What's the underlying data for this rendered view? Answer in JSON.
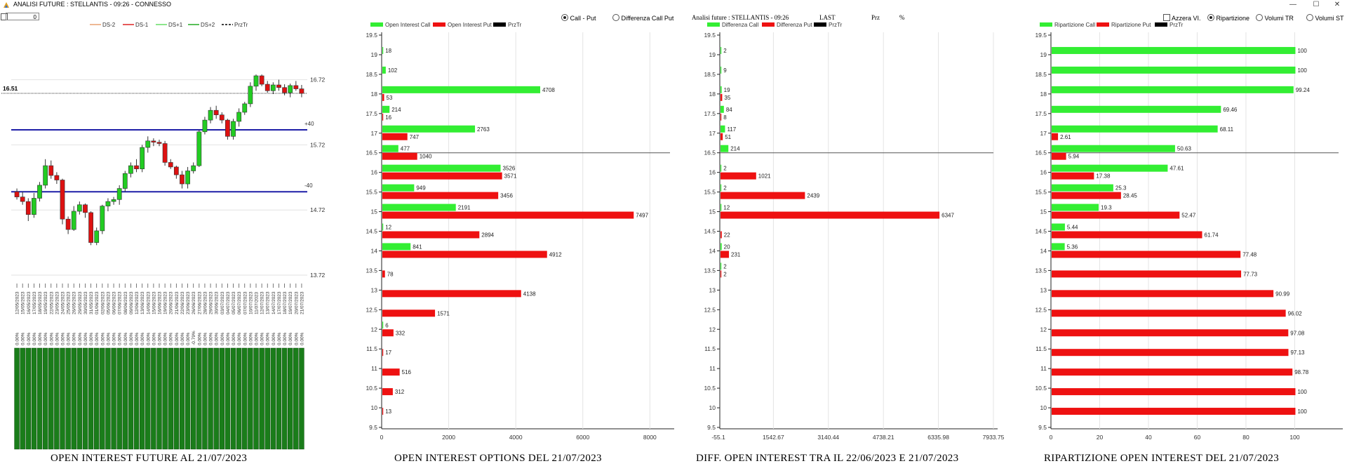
{
  "window": {
    "title": "ANALISI FUTURE : STELLANTIS - 09:26 - CONNESSO",
    "minimize": "—",
    "maximize": "☐",
    "close": "✕"
  },
  "controls": {
    "input_value": "0",
    "radio_call_put": "Call - Put",
    "radio_diff_call_put": "Differenza Call Put",
    "azzera_label": "Azzera VI.",
    "ripartizione_label": "Ripartizione",
    "volumi_tr_label": "Volumi TR",
    "volumi_st_label": "Volumi ST",
    "header_analisi": "Analisi future : STELLANTIS - 09:26",
    "header_last": "LAST",
    "header_prz": "Prz",
    "header_pct": "%"
  },
  "colors": {
    "green": "#33ee33",
    "red": "#ee1111",
    "dark_green": "#1a7d1a",
    "candle_up": "#22cc22",
    "candle_down": "#dd1111",
    "blue_line": "#1f1fa8"
  },
  "captions": {
    "c1": "OPEN INTEREST FUTURE AL 21/07/2023",
    "c2": "OPEN INTEREST OPTIONS DEL 21/07/2023",
    "c3": "DIFF. OPEN INTEREST TRA IL 22/06/2023 E 21/07/2023",
    "c4": "RIPARTIZIONE OPEN INTEREST DEL 21/07/2023"
  },
  "chart_data": [
    {
      "type": "candlestick",
      "legend": [
        "DS-2",
        "DS-1",
        "DS+1",
        "DS+2",
        "PrzTr"
      ],
      "price_labels": [
        "16.72",
        "15.72",
        "14.72",
        "13.72"
      ],
      "last_price": "16.51",
      "band_labels": [
        "+40",
        "-40"
      ],
      "dates": [
        "12/05/2023",
        "15/05/2023",
        "16/05/2023",
        "17/05/2023",
        "18/05/2023",
        "19/05/2023",
        "22/05/2023",
        "23/05/2023",
        "24/05/2023",
        "25/05/2023",
        "26/05/2023",
        "29/05/2023",
        "30/05/2023",
        "31/05/2023",
        "01/06/2023",
        "02/06/2023",
        "05/06/2023",
        "06/06/2023",
        "07/06/2023",
        "08/06/2023",
        "09/06/2023",
        "12/06/2023",
        "13/06/2023",
        "14/06/2023",
        "15/06/2023",
        "16/06/2023",
        "19/06/2023",
        "20/06/2023",
        "21/06/2023",
        "22/06/2023",
        "23/06/2023",
        "26/06/2023",
        "27/06/2023",
        "28/06/2023",
        "29/06/2023",
        "30/06/2023",
        "03/07/2023",
        "04/07/2023",
        "05/07/2023",
        "06/07/2023",
        "07/07/2023",
        "10/07/2023",
        "11/07/2023",
        "12/07/2023",
        "13/07/2023",
        "14/07/2023",
        "17/07/2023",
        "18/07/2023",
        "19/07/2023",
        "20/07/2023",
        "21/07/2023"
      ],
      "ohlc": [
        [
          15.0,
          15.05,
          14.88,
          14.92
        ],
        [
          14.92,
          15.0,
          14.8,
          14.85
        ],
        [
          14.85,
          14.9,
          14.55,
          14.65
        ],
        [
          14.65,
          14.98,
          14.6,
          14.9
        ],
        [
          14.9,
          15.15,
          14.85,
          15.1
        ],
        [
          15.1,
          15.5,
          15.05,
          15.4
        ],
        [
          15.4,
          15.48,
          15.2,
          15.25
        ],
        [
          15.25,
          15.3,
          15.12,
          15.18
        ],
        [
          15.18,
          15.2,
          14.5,
          14.58
        ],
        [
          14.58,
          14.62,
          14.35,
          14.42
        ],
        [
          14.42,
          14.78,
          14.4,
          14.7
        ],
        [
          14.7,
          14.85,
          14.65,
          14.8
        ],
        [
          14.8,
          14.82,
          14.6,
          14.68
        ],
        [
          14.68,
          14.7,
          14.18,
          14.22
        ],
        [
          14.22,
          14.45,
          14.18,
          14.4
        ],
        [
          14.4,
          14.8,
          14.35,
          14.78
        ],
        [
          14.78,
          14.9,
          14.7,
          14.85
        ],
        [
          14.85,
          14.92,
          14.8,
          14.88
        ],
        [
          14.88,
          15.1,
          14.8,
          15.05
        ],
        [
          15.05,
          15.32,
          15.0,
          15.28
        ],
        [
          15.28,
          15.45,
          15.22,
          15.4
        ],
        [
          15.4,
          15.5,
          15.3,
          15.35
        ],
        [
          15.35,
          15.72,
          15.3,
          15.68
        ],
        [
          15.68,
          15.85,
          15.6,
          15.78
        ],
        [
          15.78,
          15.82,
          15.7,
          15.76
        ],
        [
          15.76,
          15.8,
          15.7,
          15.74
        ],
        [
          15.74,
          15.78,
          15.4,
          15.45
        ],
        [
          15.45,
          15.5,
          15.35,
          15.38
        ],
        [
          15.38,
          15.4,
          15.2,
          15.26
        ],
        [
          15.26,
          15.32,
          15.05,
          15.12
        ],
        [
          15.12,
          15.38,
          15.05,
          15.32
        ],
        [
          15.32,
          15.45,
          15.28,
          15.4
        ],
        [
          15.4,
          15.95,
          15.38,
          15.92
        ],
        [
          15.92,
          16.15,
          15.88,
          16.1
        ],
        [
          16.1,
          16.3,
          16.05,
          16.25
        ],
        [
          16.25,
          16.32,
          16.12,
          16.18
        ],
        [
          16.18,
          16.22,
          16.05,
          16.1
        ],
        [
          16.1,
          16.12,
          15.8,
          15.85
        ],
        [
          15.85,
          16.12,
          15.8,
          16.08
        ],
        [
          16.08,
          16.28,
          16.0,
          16.22
        ],
        [
          16.22,
          16.38,
          16.18,
          16.35
        ],
        [
          16.35,
          16.68,
          16.3,
          16.62
        ],
        [
          16.62,
          16.8,
          16.55,
          16.78
        ],
        [
          16.78,
          16.8,
          16.62,
          16.65
        ],
        [
          16.65,
          16.7,
          16.52,
          16.55
        ],
        [
          16.55,
          16.68,
          16.5,
          16.64
        ],
        [
          16.64,
          16.72,
          16.55,
          16.6
        ],
        [
          16.6,
          16.65,
          16.48,
          16.52
        ],
        [
          16.52,
          16.66,
          16.45,
          16.63
        ],
        [
          16.63,
          16.7,
          16.55,
          16.58
        ],
        [
          16.58,
          16.64,
          16.45,
          16.51
        ]
      ],
      "ymin": 13.72,
      "ymax": 16.92,
      "band_upper": 15.95,
      "band_lower": 15.0,
      "oi_pct_label": "0.00%",
      "oi_pct_exceptions": {
        "31": "-0.79%"
      }
    },
    {
      "type": "bar",
      "orientation": "horizontal",
      "legend": [
        "Open Interest Call",
        "Open Interest Put",
        "PrzTr"
      ],
      "strikes": [
        19.5,
        19,
        18.5,
        18,
        17.5,
        17,
        16.5,
        16,
        15.5,
        15,
        14.5,
        14,
        13.5,
        13,
        12.5,
        12,
        11.5,
        11,
        10.5,
        10,
        9.5
      ],
      "calls": {
        "19": "18",
        "18.5": "102",
        "18": "4708",
        "17.5": "214",
        "17": "2763",
        "16.5": "477",
        "16": "3526",
        "15.5": "949",
        "15": "2191",
        "14.5": "12",
        "14": "841",
        "12": "6"
      },
      "puts": {
        "18": "53",
        "17.5": "16",
        "17": "747",
        "16.5": "1040",
        "16": "3571",
        "15.5": "3456",
        "15": "7497",
        "14.5": "2894",
        "14": "4912",
        "13.5": "78",
        "13": "4138",
        "12.5": "1571",
        "12": "332",
        "11.5": "17",
        "11": "516",
        "10.5": "312",
        "10": "13"
      },
      "x_ticks": [
        "0",
        "2000",
        "4000",
        "6000",
        "8000"
      ],
      "xmax": 8600,
      "przTr_strike": 16.5
    },
    {
      "type": "bar",
      "orientation": "horizontal",
      "legend": [
        "Differenza Call",
        "Differenza Put",
        "PrzTr"
      ],
      "strikes": [
        19.5,
        19,
        18.5,
        18,
        17.5,
        17,
        16.5,
        16,
        15.5,
        15,
        14.5,
        14,
        13.5,
        13,
        12.5,
        12,
        11.5,
        11,
        10.5,
        10,
        9.5
      ],
      "calls": {
        "19": "2",
        "18.5": "9",
        "18": "19",
        "17.5": "84",
        "17": "117",
        "16.5": "214",
        "16": "2",
        "15.5": "2",
        "15": "12",
        "14": "20",
        "13.5": "2"
      },
      "puts": {
        "18": "35",
        "17.5": "8",
        "17": "51",
        "16": "1021",
        "15.5": "2439",
        "15": "6347",
        "14.5": "22",
        "14": "231",
        "13.5": "2"
      },
      "x_ticks": [
        "-55.1",
        "1542.67",
        "3140.44",
        "4738.21",
        "6335.98",
        "7933.75"
      ],
      "xmin": -55.1,
      "xmax": 7933.75,
      "przTr_strike": 16.5
    },
    {
      "type": "bar",
      "orientation": "horizontal",
      "legend": [
        "Ripartizione Call",
        "Ripartizione Put",
        "PrzTr"
      ],
      "strikes": [
        19.5,
        19,
        18.5,
        18,
        17.5,
        17,
        16.5,
        16,
        15.5,
        15,
        14.5,
        14,
        13.5,
        13,
        12.5,
        12,
        11.5,
        11,
        10.5,
        10,
        9.5
      ],
      "calls": {
        "19": "100",
        "18.5": "100",
        "18": "99.24",
        "17.5": "69.46",
        "17": "68.11",
        "16.5": "50.63",
        "16": "47.61",
        "15.5": "25.3",
        "15": "19.3",
        "14.5": "5.44",
        "14": "5.36"
      },
      "puts": {
        "17": "2.61",
        "16.5": "5.94",
        "16": "17.38",
        "15.5": "28.45",
        "15": "52.47",
        "14.5": "61.74",
        "14": "77.48",
        "13.5": "77.73",
        "13": "90.99",
        "12.5": "96.02",
        "12": "97.08",
        "11.5": "97.13",
        "11": "98.78",
        "10.5": "100",
        "10": "100"
      },
      "x_ticks": [
        "0",
        "20",
        "40",
        "60",
        "80",
        "100"
      ],
      "xmax": 118,
      "przTr_strike": 16.5
    }
  ]
}
